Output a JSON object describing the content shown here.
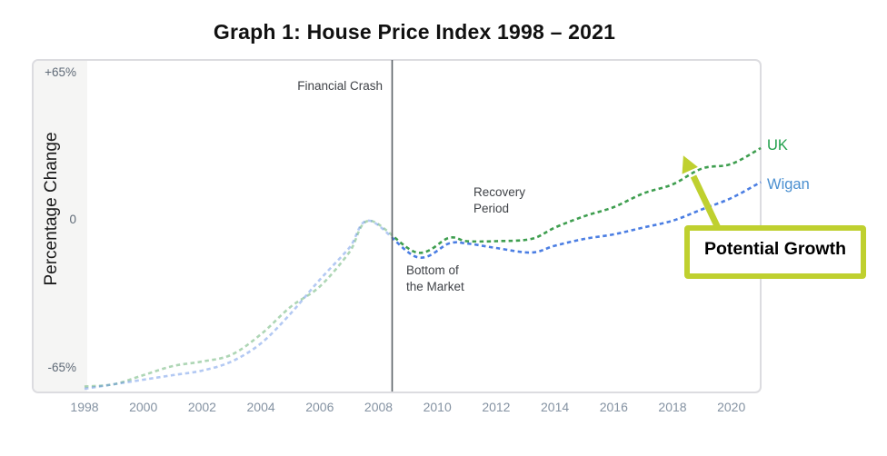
{
  "title": "Graph 1: House Price Index 1998 – 2021",
  "y_axis": {
    "title": "Percentage Change",
    "ticks": [
      {
        "label": "+65%",
        "value": 65
      },
      {
        "label": "0",
        "value": 0
      },
      {
        "label": "-65%",
        "value": -65
      }
    ]
  },
  "x_axis": {
    "tick_years": [
      1998,
      2000,
      2002,
      2004,
      2006,
      2008,
      2010,
      2012,
      2014,
      2016,
      2018,
      2020
    ]
  },
  "annotations": {
    "financial_crash": "Financial Crash",
    "bottom_of_market": [
      "Bottom of",
      "the Market"
    ],
    "recovery_period": [
      "Recovery",
      "Period"
    ],
    "potential_growth": "Potential Growth"
  },
  "series_labels": {
    "uk": "UK",
    "wigan": "Wigan"
  },
  "colors": {
    "uk_line": "#3e9e4f",
    "wigan_line": "#4b7ee3",
    "uk_label": "#21a04c",
    "wigan_label": "#4a8fd0",
    "callout": "#bfd02f",
    "crash_line": "#5a6066",
    "panel_border": "#dcdce0",
    "panel_strip": "#f5f5f4",
    "y_tick_text": "#5f6a77",
    "x_tick_text": "#8492a2",
    "annotation_text": "#3f4247",
    "title_text": "#111111"
  },
  "chart_data": {
    "type": "line",
    "title": "Graph 1: House Price Index 1998 – 2021",
    "xlabel": "",
    "ylabel": "Percentage Change",
    "ylim": [
      -80,
      70
    ],
    "xlim": [
      1998,
      2021
    ],
    "grid": false,
    "line_style": "dashed",
    "fade_before_year": 2008.45,
    "financial_crash_line_year": 2008.45,
    "legend_position": "end-of-line-labels",
    "x": [
      1998,
      1999,
      2000,
      2001,
      2002,
      2003,
      2004,
      2005,
      2006,
      2007,
      2007.7,
      2009.3,
      2010.4,
      2011,
      2012,
      2013.2,
      2014,
      2015,
      2016,
      2017,
      2018,
      2019,
      2020,
      2021
    ],
    "series": [
      {
        "name": "UK",
        "color": "#3e9e4f",
        "values": [
          -73,
          -72,
          -68,
          -64,
          -62,
          -59,
          -50,
          -38,
          -29,
          -14,
          0,
          -14,
          -7.5,
          -9,
          -9,
          -8,
          -3,
          2,
          6,
          12,
          16,
          23,
          25,
          32
        ]
      },
      {
        "name": "Wigan",
        "color": "#4b7ee3",
        "values": [
          -74,
          -72,
          -70,
          -68,
          -66,
          -62,
          -54,
          -41,
          -26,
          -12,
          0,
          -16,
          -10,
          -10,
          -12,
          -14,
          -11,
          -8,
          -6,
          -3,
          0,
          5,
          10,
          17
        ]
      }
    ],
    "x_ticks": [
      1998,
      2000,
      2002,
      2004,
      2006,
      2008,
      2010,
      2012,
      2014,
      2016,
      2018,
      2020
    ],
    "y_ticks": [
      "+65%",
      "0",
      "-65%"
    ],
    "annotations": [
      "Financial Crash",
      "Bottom of the Market",
      "Recovery Period",
      "Potential Growth"
    ]
  }
}
